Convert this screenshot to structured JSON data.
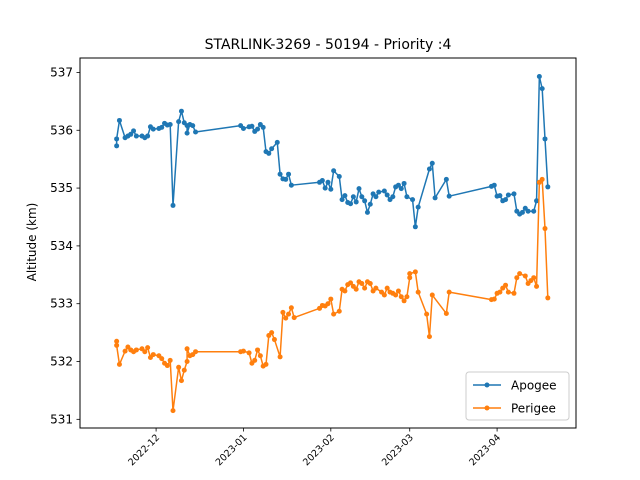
{
  "chart_data": {
    "type": "line",
    "title": "STARLINK-3269 - 50194 - Priority :4",
    "xlabel": "",
    "ylabel": "Altitude (km)",
    "x_axis_type": "date",
    "xlim": [
      "2022-11-04",
      "2023-04-29"
    ],
    "ylim": [
      530.85,
      537.25
    ],
    "x_ticks": [
      {
        "date": "2022-12-01",
        "label": "2022-12"
      },
      {
        "date": "2023-01-01",
        "label": "2023-01"
      },
      {
        "date": "2023-02-01",
        "label": "2023-02"
      },
      {
        "date": "2023-03-01",
        "label": "2023-03"
      },
      {
        "date": "2023-04-01",
        "label": "2023-04"
      }
    ],
    "y_ticks": [
      {
        "value": 531,
        "label": "531"
      },
      {
        "value": 532,
        "label": "532"
      },
      {
        "value": 533,
        "label": "533"
      },
      {
        "value": 534,
        "label": "534"
      },
      {
        "value": 535,
        "label": "535"
      },
      {
        "value": 536,
        "label": "536"
      },
      {
        "value": 537,
        "label": "537"
      }
    ],
    "grid": false,
    "legend_position": "lower-right",
    "series": [
      {
        "name": "Apogee",
        "color": "#1f77b4",
        "marker": "circle",
        "points": [
          [
            "2022-11-17",
            535.73
          ],
          [
            "2022-11-17",
            535.85
          ],
          [
            "2022-11-18",
            536.17
          ],
          [
            "2022-11-20",
            535.87
          ],
          [
            "2022-11-21",
            535.9
          ],
          [
            "2022-11-22",
            535.93
          ],
          [
            "2022-11-23",
            535.99
          ],
          [
            "2022-11-24",
            535.9
          ],
          [
            "2022-11-26",
            535.9
          ],
          [
            "2022-11-27",
            535.87
          ],
          [
            "2022-11-28",
            535.9
          ],
          [
            "2022-11-29",
            536.06
          ],
          [
            "2022-11-30",
            536.02
          ],
          [
            "2022-12-02",
            536.03
          ],
          [
            "2022-12-03",
            536.05
          ],
          [
            "2022-12-04",
            536.12
          ],
          [
            "2022-12-05",
            536.09
          ],
          [
            "2022-12-06",
            536.1
          ],
          [
            "2022-12-07",
            534.7
          ],
          [
            "2022-12-09",
            536.15
          ],
          [
            "2022-12-10",
            536.33
          ],
          [
            "2022-12-11",
            536.13
          ],
          [
            "2022-12-12",
            536.08
          ],
          [
            "2022-12-12",
            535.95
          ],
          [
            "2022-12-13",
            536.1
          ],
          [
            "2022-12-14",
            536.08
          ],
          [
            "2022-12-15",
            535.97
          ],
          [
            "2022-12-31",
            536.08
          ],
          [
            "2023-01-01",
            536.03
          ],
          [
            "2023-01-03",
            536.06
          ],
          [
            "2023-01-04",
            536.07
          ],
          [
            "2023-01-05",
            535.98
          ],
          [
            "2023-01-06",
            536.02
          ],
          [
            "2023-01-07",
            536.1
          ],
          [
            "2023-01-08",
            536.05
          ],
          [
            "2023-01-09",
            535.63
          ],
          [
            "2023-01-10",
            535.6
          ],
          [
            "2023-01-11",
            535.68
          ],
          [
            "2023-01-13",
            535.79
          ],
          [
            "2023-01-14",
            535.24
          ],
          [
            "2023-01-15",
            535.16
          ],
          [
            "2023-01-16",
            535.15
          ],
          [
            "2023-01-17",
            535.24
          ],
          [
            "2023-01-18",
            535.05
          ],
          [
            "2023-01-28",
            535.1
          ],
          [
            "2023-01-29",
            535.13
          ],
          [
            "2023-01-30",
            535.0
          ],
          [
            "2023-01-31",
            535.1
          ],
          [
            "2023-02-01",
            534.98
          ],
          [
            "2023-02-02",
            535.3
          ],
          [
            "2023-02-04",
            535.2
          ],
          [
            "2023-02-05",
            534.8
          ],
          [
            "2023-02-06",
            534.87
          ],
          [
            "2023-02-07",
            534.75
          ],
          [
            "2023-02-08",
            534.73
          ],
          [
            "2023-02-09",
            534.85
          ],
          [
            "2023-02-10",
            534.76
          ],
          [
            "2023-02-11",
            534.99
          ],
          [
            "2023-02-12",
            534.85
          ],
          [
            "2023-02-13",
            534.78
          ],
          [
            "2023-02-14",
            534.58
          ],
          [
            "2023-02-15",
            534.72
          ],
          [
            "2023-02-16",
            534.9
          ],
          [
            "2023-02-17",
            534.85
          ],
          [
            "2023-02-18",
            534.93
          ],
          [
            "2023-02-20",
            534.95
          ],
          [
            "2023-02-21",
            534.88
          ],
          [
            "2023-02-22",
            534.8
          ],
          [
            "2023-02-23",
            534.85
          ],
          [
            "2023-02-24",
            535.02
          ],
          [
            "2023-02-25",
            535.05
          ],
          [
            "2023-02-26",
            534.99
          ],
          [
            "2023-02-27",
            535.08
          ],
          [
            "2023-02-28",
            534.85
          ],
          [
            "2023-03-02",
            534.8
          ],
          [
            "2023-03-03",
            534.33
          ],
          [
            "2023-03-04",
            534.67
          ],
          [
            "2023-03-08",
            535.33
          ],
          [
            "2023-03-09",
            535.43
          ],
          [
            "2023-03-10",
            534.83
          ],
          [
            "2023-03-14",
            535.15
          ],
          [
            "2023-03-15",
            534.86
          ],
          [
            "2023-03-30",
            535.03
          ],
          [
            "2023-03-31",
            535.05
          ],
          [
            "2023-04-01",
            534.86
          ],
          [
            "2023-04-02",
            534.87
          ],
          [
            "2023-04-03",
            534.78
          ],
          [
            "2023-04-04",
            534.8
          ],
          [
            "2023-04-05",
            534.88
          ],
          [
            "2023-04-07",
            534.9
          ],
          [
            "2023-04-08",
            534.6
          ],
          [
            "2023-04-09",
            534.55
          ],
          [
            "2023-04-10",
            534.58
          ],
          [
            "2023-04-11",
            534.65
          ],
          [
            "2023-04-12",
            534.6
          ],
          [
            "2023-04-14",
            534.6
          ],
          [
            "2023-04-15",
            534.78
          ],
          [
            "2023-04-16",
            536.93
          ],
          [
            "2023-04-17",
            536.72
          ],
          [
            "2023-04-18",
            535.85
          ],
          [
            "2023-04-19",
            535.02
          ]
        ]
      },
      {
        "name": "Perigee",
        "color": "#ff7f0e",
        "marker": "circle",
        "points": [
          [
            "2022-11-17",
            532.35
          ],
          [
            "2022-11-17",
            532.28
          ],
          [
            "2022-11-18",
            531.95
          ],
          [
            "2022-11-20",
            532.18
          ],
          [
            "2022-11-21",
            532.25
          ],
          [
            "2022-11-22",
            532.2
          ],
          [
            "2022-11-23",
            532.17
          ],
          [
            "2022-11-24",
            532.2
          ],
          [
            "2022-11-26",
            532.22
          ],
          [
            "2022-11-27",
            532.17
          ],
          [
            "2022-11-28",
            532.24
          ],
          [
            "2022-11-29",
            532.07
          ],
          [
            "2022-11-30",
            532.12
          ],
          [
            "2022-12-02",
            532.1
          ],
          [
            "2022-12-03",
            532.05
          ],
          [
            "2022-12-04",
            531.97
          ],
          [
            "2022-12-05",
            531.93
          ],
          [
            "2022-12-06",
            532.02
          ],
          [
            "2022-12-07",
            531.15
          ],
          [
            "2022-12-09",
            531.9
          ],
          [
            "2022-12-10",
            531.67
          ],
          [
            "2022-12-11",
            531.85
          ],
          [
            "2022-12-12",
            532.0
          ],
          [
            "2022-12-12",
            532.22
          ],
          [
            "2022-12-13",
            532.1
          ],
          [
            "2022-12-14",
            532.12
          ],
          [
            "2022-12-15",
            532.17
          ],
          [
            "2022-12-31",
            532.17
          ],
          [
            "2023-01-01",
            532.18
          ],
          [
            "2023-01-03",
            532.15
          ],
          [
            "2023-01-04",
            531.97
          ],
          [
            "2023-01-05",
            532.02
          ],
          [
            "2023-01-06",
            532.2
          ],
          [
            "2023-01-07",
            532.1
          ],
          [
            "2023-01-08",
            531.92
          ],
          [
            "2023-01-09",
            531.95
          ],
          [
            "2023-01-10",
            532.45
          ],
          [
            "2023-01-11",
            532.5
          ],
          [
            "2023-01-12",
            532.38
          ],
          [
            "2023-01-14",
            532.08
          ],
          [
            "2023-01-15",
            532.85
          ],
          [
            "2023-01-16",
            532.75
          ],
          [
            "2023-01-17",
            532.82
          ],
          [
            "2023-01-18",
            532.93
          ],
          [
            "2023-01-19",
            532.76
          ],
          [
            "2023-01-28",
            532.92
          ],
          [
            "2023-01-29",
            532.97
          ],
          [
            "2023-01-30",
            532.96
          ],
          [
            "2023-01-31",
            533.0
          ],
          [
            "2023-02-01",
            533.08
          ],
          [
            "2023-02-02",
            532.82
          ],
          [
            "2023-02-04",
            532.87
          ],
          [
            "2023-02-05",
            533.25
          ],
          [
            "2023-02-06",
            533.22
          ],
          [
            "2023-02-07",
            533.33
          ],
          [
            "2023-02-08",
            533.36
          ],
          [
            "2023-02-09",
            533.3
          ],
          [
            "2023-02-10",
            533.25
          ],
          [
            "2023-02-11",
            533.38
          ],
          [
            "2023-02-12",
            533.35
          ],
          [
            "2023-02-13",
            533.27
          ],
          [
            "2023-02-14",
            533.38
          ],
          [
            "2023-02-15",
            533.35
          ],
          [
            "2023-02-16",
            533.22
          ],
          [
            "2023-02-17",
            533.27
          ],
          [
            "2023-02-19",
            533.2
          ],
          [
            "2023-02-20",
            533.15
          ],
          [
            "2023-02-21",
            533.27
          ],
          [
            "2023-02-22",
            533.2
          ],
          [
            "2023-02-23",
            533.18
          ],
          [
            "2023-02-24",
            533.15
          ],
          [
            "2023-02-25",
            533.22
          ],
          [
            "2023-02-26",
            533.12
          ],
          [
            "2023-02-27",
            533.05
          ],
          [
            "2023-02-28",
            533.12
          ],
          [
            "2023-03-01",
            533.45
          ],
          [
            "2023-03-01",
            533.52
          ],
          [
            "2023-03-03",
            533.55
          ],
          [
            "2023-03-04",
            533.2
          ],
          [
            "2023-03-07",
            532.82
          ],
          [
            "2023-03-08",
            532.43
          ],
          [
            "2023-03-09",
            533.15
          ],
          [
            "2023-03-14",
            532.83
          ],
          [
            "2023-03-15",
            533.2
          ],
          [
            "2023-03-30",
            533.07
          ],
          [
            "2023-03-31",
            533.08
          ],
          [
            "2023-04-01",
            533.18
          ],
          [
            "2023-04-02",
            533.2
          ],
          [
            "2023-04-03",
            533.27
          ],
          [
            "2023-04-04",
            533.32
          ],
          [
            "2023-04-05",
            533.2
          ],
          [
            "2023-04-07",
            533.18
          ],
          [
            "2023-04-08",
            533.45
          ],
          [
            "2023-04-09",
            533.52
          ],
          [
            "2023-04-11",
            533.48
          ],
          [
            "2023-04-12",
            533.35
          ],
          [
            "2023-04-13",
            533.4
          ],
          [
            "2023-04-14",
            533.45
          ],
          [
            "2023-04-15",
            533.3
          ],
          [
            "2023-04-16",
            535.1
          ],
          [
            "2023-04-17",
            535.15
          ],
          [
            "2023-04-18",
            534.3
          ],
          [
            "2023-04-19",
            533.1
          ]
        ]
      }
    ]
  }
}
